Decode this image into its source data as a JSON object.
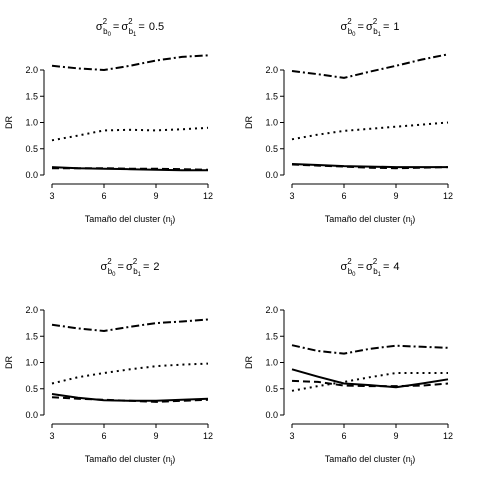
{
  "figure": {
    "colors": {
      "line": "#000000",
      "background": "#ffffff"
    },
    "line_styles": [
      "solid",
      "dashed",
      "dotted",
      "dotdash"
    ]
  },
  "chart_data": [
    {
      "type": "line",
      "title": {
        "main": "σ²b0 = σ²b1 = 0.5",
        "sigma": "σ",
        "sup": "2",
        "sub0": "b",
        "sub0s": "0",
        "sub1": "b",
        "sub1s": "1",
        "eq": "=",
        "value": "0.5"
      },
      "xlabel": {
        "text": "Tamaño del cluster (n",
        "sub": "j",
        "close": ")"
      },
      "ylabel": "DR",
      "xlim": [
        3,
        12
      ],
      "ylim": [
        0,
        2.0
      ],
      "grid": false,
      "x_ticks": [
        3,
        6,
        9,
        12
      ],
      "x_tick_labels": [
        "3",
        "6",
        "9",
        "12"
      ],
      "y_ticks": [
        0,
        0.5,
        1.0,
        1.5,
        2.0
      ],
      "y_tick_labels": [
        "0.0",
        "0.5",
        "1.0",
        "1.5",
        "2.0"
      ],
      "x": [
        3,
        4.5,
        6,
        7.5,
        9,
        10.5,
        12
      ],
      "series": [
        {
          "style": "solid",
          "values": [
            0.15,
            0.13,
            0.12,
            0.11,
            0.1,
            0.09,
            0.09
          ]
        },
        {
          "style": "dashed",
          "values": [
            0.13,
            0.13,
            0.13,
            0.12,
            0.12,
            0.11,
            0.1
          ]
        },
        {
          "style": "dotted",
          "values": [
            0.66,
            0.75,
            0.85,
            0.86,
            0.85,
            0.87,
            0.9
          ]
        },
        {
          "style": "dotdash",
          "values": [
            2.08,
            2.03,
            2.0,
            2.08,
            2.18,
            2.25,
            2.28
          ]
        }
      ]
    },
    {
      "type": "line",
      "title": {
        "main": "σ²b0 = σ²b1 = 1",
        "sigma": "σ",
        "sup": "2",
        "sub0": "b",
        "sub0s": "0",
        "sub1": "b",
        "sub1s": "1",
        "eq": "=",
        "value": "1"
      },
      "xlabel": {
        "text": "Tamaño del cluster (n",
        "sub": "j",
        "close": ")"
      },
      "ylabel": "DR",
      "xlim": [
        3,
        12
      ],
      "ylim": [
        0,
        2.0
      ],
      "grid": false,
      "x_ticks": [
        3,
        6,
        9,
        12
      ],
      "x_tick_labels": [
        "3",
        "6",
        "9",
        "12"
      ],
      "y_ticks": [
        0,
        0.5,
        1.0,
        1.5,
        2.0
      ],
      "y_tick_labels": [
        "0.0",
        "0.5",
        "1.0",
        "1.5",
        "2.0"
      ],
      "x": [
        3,
        4.5,
        6,
        7.5,
        9,
        10.5,
        12
      ],
      "series": [
        {
          "style": "solid",
          "values": [
            0.21,
            0.19,
            0.17,
            0.16,
            0.15,
            0.15,
            0.15
          ]
        },
        {
          "style": "dashed",
          "values": [
            0.2,
            0.18,
            0.16,
            0.14,
            0.13,
            0.14,
            0.15
          ]
        },
        {
          "style": "dotted",
          "values": [
            0.68,
            0.77,
            0.84,
            0.88,
            0.92,
            0.96,
            1.0
          ]
        },
        {
          "style": "dotdash",
          "values": [
            1.98,
            1.92,
            1.85,
            1.97,
            2.08,
            2.2,
            2.3
          ]
        }
      ]
    },
    {
      "type": "line",
      "title": {
        "main": "σ²b0 = σ²b1 = 2",
        "sigma": "σ",
        "sup": "2",
        "sub0": "b",
        "sub0s": "0",
        "sub1": "b",
        "sub1s": "1",
        "eq": "=",
        "value": "2"
      },
      "xlabel": {
        "text": "Tamaño del cluster (n",
        "sub": "j",
        "close": ")"
      },
      "ylabel": "DR",
      "xlim": [
        3,
        12
      ],
      "ylim": [
        0,
        2.0
      ],
      "grid": false,
      "x_ticks": [
        3,
        6,
        9,
        12
      ],
      "x_tick_labels": [
        "3",
        "6",
        "9",
        "12"
      ],
      "y_ticks": [
        0,
        0.5,
        1.0,
        1.5,
        2.0
      ],
      "y_tick_labels": [
        "0.0",
        "0.5",
        "1.0",
        "1.5",
        "2.0"
      ],
      "x": [
        3,
        4.5,
        6,
        7.5,
        9,
        10.5,
        12
      ],
      "series": [
        {
          "style": "solid",
          "values": [
            0.4,
            0.33,
            0.28,
            0.27,
            0.27,
            0.29,
            0.31
          ]
        },
        {
          "style": "dashed",
          "values": [
            0.34,
            0.31,
            0.29,
            0.27,
            0.25,
            0.27,
            0.29
          ]
        },
        {
          "style": "dotted",
          "values": [
            0.6,
            0.72,
            0.8,
            0.87,
            0.93,
            0.96,
            0.98
          ]
        },
        {
          "style": "dotdash",
          "values": [
            1.72,
            1.65,
            1.6,
            1.68,
            1.75,
            1.78,
            1.82
          ]
        }
      ]
    },
    {
      "type": "line",
      "title": {
        "main": "σ²b0 = σ²b1 = 4",
        "sigma": "σ",
        "sup": "2",
        "sub0": "b",
        "sub0s": "0",
        "sub1": "b",
        "sub1s": "1",
        "eq": "=",
        "value": "4"
      },
      "xlabel": {
        "text": "Tamaño del cluster (n",
        "sub": "j",
        "close": ")"
      },
      "ylabel": "DR",
      "xlim": [
        3,
        12
      ],
      "ylim": [
        0,
        2.0
      ],
      "grid": false,
      "x_ticks": [
        3,
        6,
        9,
        12
      ],
      "x_tick_labels": [
        "3",
        "6",
        "9",
        "12"
      ],
      "y_ticks": [
        0,
        0.5,
        1.0,
        1.5,
        2.0
      ],
      "y_tick_labels": [
        "0.0",
        "0.5",
        "1.0",
        "1.5",
        "2.0"
      ],
      "x": [
        3,
        4.5,
        6,
        7.5,
        9,
        10.5,
        12
      ],
      "series": [
        {
          "style": "solid",
          "values": [
            0.87,
            0.73,
            0.6,
            0.57,
            0.53,
            0.6,
            0.68
          ]
        },
        {
          "style": "dashed",
          "values": [
            0.65,
            0.63,
            0.56,
            0.55,
            0.55,
            0.56,
            0.6
          ]
        },
        {
          "style": "dotted",
          "values": [
            0.46,
            0.55,
            0.63,
            0.72,
            0.8,
            0.8,
            0.8
          ]
        },
        {
          "style": "dotdash",
          "values": [
            1.33,
            1.22,
            1.17,
            1.26,
            1.32,
            1.3,
            1.28
          ]
        }
      ]
    }
  ]
}
